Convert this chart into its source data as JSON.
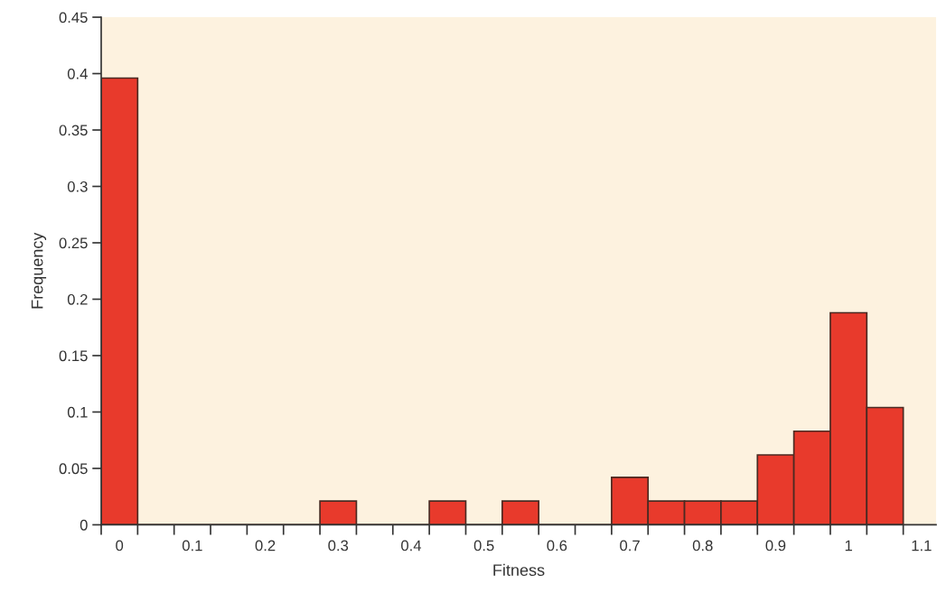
{
  "chart_data": {
    "type": "histogram",
    "xlabel": "Fitness",
    "ylabel": "Frequency",
    "color": "#e83a2c",
    "bins": [
      -0.025,
      0.025,
      0.075,
      0.125,
      0.175,
      0.225,
      0.275,
      0.325,
      0.375,
      0.425,
      0.475,
      0.525,
      0.575,
      0.625,
      0.675,
      0.725,
      0.775,
      0.825,
      0.875,
      0.925,
      0.975,
      1.025,
      1.075
    ],
    "values": [
      0.396,
      0,
      0,
      0,
      0,
      0,
      0.021,
      0,
      0,
      0.021,
      0,
      0.021,
      0,
      0,
      0.042,
      0.021,
      0.021,
      0.021,
      0.062,
      0.083,
      0.188,
      0.104
    ],
    "xlim": [
      -0.025,
      1.12
    ],
    "ylim": [
      0,
      0.45
    ],
    "xticks": [
      0,
      0.1,
      0.2,
      0.3,
      0.4,
      0.5,
      0.6,
      0.7,
      0.8,
      0.9,
      1,
      1.1,
      {
        "value": -0.025,
        "label": null
      },
      {
        "value": 0.025,
        "label": null
      },
      {
        "value": 0.075,
        "label": null
      },
      {
        "value": 0.125,
        "label": null
      },
      {
        "value": 0.175,
        "label": null
      },
      {
        "value": 0.225,
        "label": null
      },
      {
        "value": 0.275,
        "label": null
      },
      {
        "value": 0.325,
        "label": null
      },
      {
        "value": 0.375,
        "label": null
      },
      {
        "value": 0.425,
        "label": null
      },
      {
        "value": 0.475,
        "label": null
      },
      {
        "value": 0.525,
        "label": null
      },
      {
        "value": 0.575,
        "label": null
      },
      {
        "value": 0.625,
        "label": null
      },
      {
        "value": 0.675,
        "label": null
      },
      {
        "value": 0.725,
        "label": null
      },
      {
        "value": 0.775,
        "label": null
      },
      {
        "value": 0.825,
        "label": null
      },
      {
        "value": 0.875,
        "label": null
      },
      {
        "value": 0.925,
        "label": null
      },
      {
        "value": 0.975,
        "label": null
      },
      {
        "value": 1.025,
        "label": null
      },
      {
        "value": 1.075,
        "label": null
      }
    ],
    "yticks": [
      0,
      0.05,
      0.1,
      0.15,
      0.2,
      0.25,
      0.3,
      0.35,
      0.4,
      0.45
    ],
    "grid": false,
    "legend": false
  }
}
